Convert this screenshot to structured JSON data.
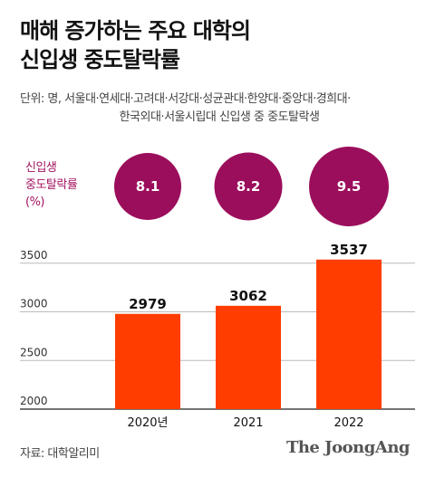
{
  "header": {
    "title_line1": "매해 증가하는 주요 대학의",
    "title_line2": "신입생 중도탈락률",
    "unit_line1": "단위: 명, 서울대·연세대·고려대·서강대·성균관대·한양대·중앙대·경희대·",
    "unit_line2": "한국외대·서울시립대 신입생 중 중도탈락생"
  },
  "rate_label": {
    "line1": "신입생",
    "line2": "중도탈락률",
    "line3": "(%)"
  },
  "chart_data": [
    {
      "type": "bubble",
      "categories": [
        "2020년",
        "2021",
        "2022"
      ],
      "values": [
        8.1,
        8.2,
        9.5
      ],
      "color": "#9b0e5c"
    },
    {
      "type": "bar",
      "categories": [
        "2020년",
        "2021",
        "2022"
      ],
      "values": [
        2979,
        3062,
        3537
      ],
      "ylim": [
        2000,
        3600
      ],
      "yticks": [
        2000,
        2500,
        3000,
        3500
      ],
      "grid": true,
      "color": "#ff3d00"
    }
  ],
  "footer": {
    "source": "자료: 대학알리미",
    "brand": "The JoongAng"
  }
}
